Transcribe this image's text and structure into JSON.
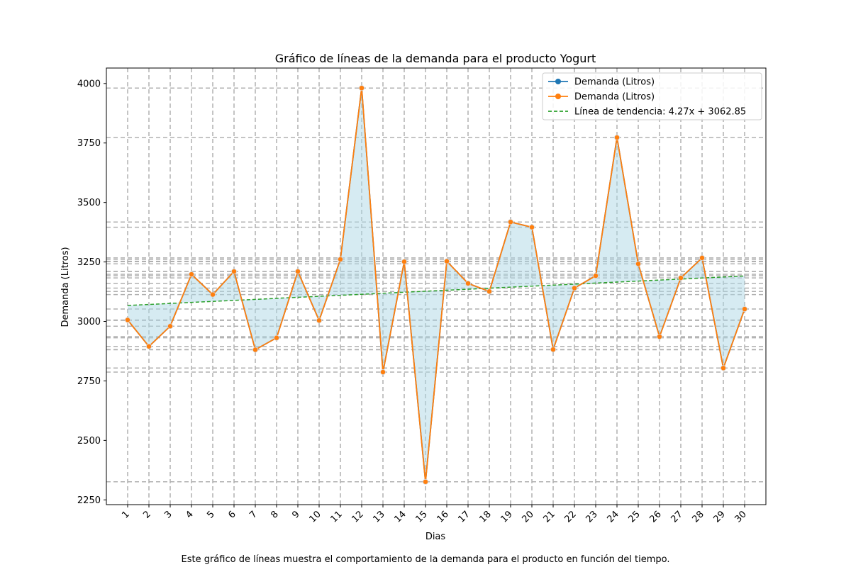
{
  "chart_data": {
    "type": "line",
    "title": "Gráfico de líneas de la demanda para el producto Yogurt",
    "xlabel": "Dias",
    "ylabel": "Demanda (Litros)",
    "caption": "Este gráfico de líneas muestra el comportamiento de la demanda para el producto en función del tiempo.",
    "categories": [
      "1",
      "2",
      "3",
      "4",
      "5",
      "6",
      "7",
      "8",
      "9",
      "10",
      "11",
      "12",
      "13",
      "14",
      "15",
      "16",
      "17",
      "18",
      "19",
      "20",
      "21",
      "22",
      "23",
      "24",
      "25",
      "26",
      "27",
      "28",
      "29",
      "30"
    ],
    "x": [
      1,
      2,
      3,
      4,
      5,
      6,
      7,
      8,
      9,
      10,
      11,
      12,
      13,
      14,
      15,
      16,
      17,
      18,
      19,
      20,
      21,
      22,
      23,
      24,
      25,
      26,
      27,
      28,
      29,
      30
    ],
    "ylim": [
      2230,
      4065
    ],
    "yticks": [
      2250,
      2500,
      2750,
      3000,
      3250,
      3500,
      3750,
      4000
    ],
    "series": [
      {
        "name": "Demanda (Litros)",
        "color": "#1f77b4",
        "marker": "o",
        "values": [
          3006,
          2895,
          2980,
          3198,
          3113,
          3210,
          2881,
          2931,
          3210,
          3004,
          3261,
          3981,
          2787,
          3251,
          2326,
          3253,
          3160,
          3126,
          3418,
          3396,
          2882,
          3140,
          3192,
          3773,
          3242,
          2936,
          3183,
          3267,
          2804,
          3052
        ]
      },
      {
        "name": "Demanda (Litros)",
        "color": "#ff7f0e",
        "marker": "o",
        "values": [
          3006,
          2895,
          2980,
          3198,
          3113,
          3210,
          2881,
          2931,
          3210,
          3004,
          3261,
          3981,
          2787,
          3251,
          2326,
          3253,
          3160,
          3126,
          3418,
          3396,
          2882,
          3140,
          3192,
          3773,
          3242,
          2936,
          3183,
          3267,
          2804,
          3052
        ]
      }
    ],
    "trend": {
      "name": "Línea de tendencia: 4.27x + 3062.85",
      "slope": 4.27,
      "intercept": 3062.85,
      "color": "#2ca02c"
    },
    "fill_color": "#add8e6",
    "grid": true,
    "legend_position": "top-right"
  }
}
